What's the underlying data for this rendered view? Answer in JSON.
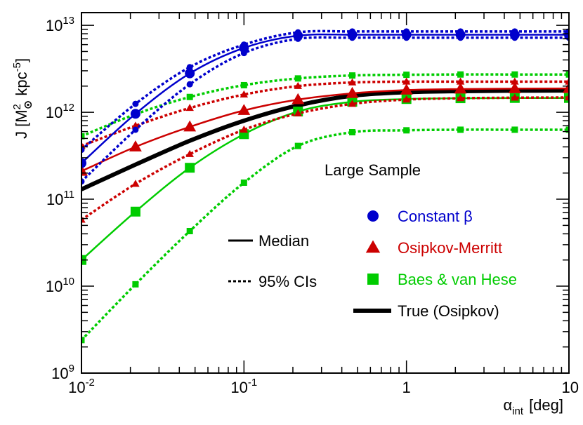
{
  "chart_data": {
    "type": "line",
    "title": "",
    "annotation": "Large Sample",
    "xlabel": {
      "symbol": "α",
      "subscript": "int",
      "unit": "[deg]"
    },
    "ylabel": {
      "prefix": "J [M",
      "sup1": "2",
      "sub_symbol": "⊙",
      "mid": " kpc",
      "sup2": "-5",
      "suffix": "]"
    },
    "xscale": "log",
    "yscale": "log",
    "xlim": [
      0.01,
      10
    ],
    "ylim": [
      1000000000.0,
      14000000000000.0
    ],
    "x_ticks": [
      {
        "value": 0.01,
        "base": "10",
        "exp": "-2"
      },
      {
        "value": 0.1,
        "base": "10",
        "exp": "-1"
      },
      {
        "value": 1,
        "base": "1",
        "exp": ""
      },
      {
        "value": 10,
        "base": "10",
        "exp": ""
      }
    ],
    "y_ticks": [
      {
        "value": 1000000000.0,
        "base": "10",
        "exp": "9"
      },
      {
        "value": 10000000000.0,
        "base": "10",
        "exp": "10"
      },
      {
        "value": 100000000000.0,
        "base": "10",
        "exp": "11"
      },
      {
        "value": 1000000000000.0,
        "base": "10",
        "exp": "12"
      },
      {
        "value": 10000000000000.0,
        "base": "10",
        "exp": "13"
      }
    ],
    "x": [
      0.01,
      0.0215,
      0.0464,
      0.1,
      0.215,
      0.464,
      1,
      2.15,
      4.64,
      10
    ],
    "series": [
      {
        "name": "Constant β median",
        "group": "constant",
        "style": "median",
        "marker": "circle",
        "color": "#0000cc",
        "values": [
          260000000000.0,
          960000000000.0,
          2800000000000.0,
          5500000000000.0,
          7600000000000.0,
          7800000000000.0,
          7800000000000.0,
          7800000000000.0,
          7800000000000.0,
          7800000000000.0
        ]
      },
      {
        "name": "Constant β 95% upper",
        "group": "constant",
        "style": "ci",
        "marker": "circle",
        "color": "#0000cc",
        "values": [
          370000000000.0,
          1250000000000.0,
          3300000000000.0,
          6000000000000.0,
          8300000000000.0,
          8500000000000.0,
          8500000000000.0,
          8500000000000.0,
          8500000000000.0,
          8500000000000.0
        ]
      },
      {
        "name": "Constant β 95% lower",
        "group": "constant",
        "style": "ci",
        "marker": "circle",
        "color": "#0000cc",
        "values": [
          160000000000.0,
          630000000000.0,
          2100000000000.0,
          4800000000000.0,
          7000000000000.0,
          7200000000000.0,
          7200000000000.0,
          7200000000000.0,
          7200000000000.0,
          7200000000000.0
        ]
      },
      {
        "name": "Osipkov-Merritt median",
        "group": "om",
        "style": "median",
        "marker": "triangle",
        "color": "#cc0000",
        "values": [
          210000000000.0,
          400000000000.0,
          680000000000.0,
          1050000000000.0,
          1400000000000.0,
          1650000000000.0,
          1800000000000.0,
          1850000000000.0,
          1870000000000.0,
          1880000000000.0
        ]
      },
      {
        "name": "Osipkov-Merritt 95% upper",
        "group": "om",
        "style": "ci",
        "marker": "triangle",
        "color": "#cc0000",
        "values": [
          410000000000.0,
          700000000000.0,
          1120000000000.0,
          1600000000000.0,
          2000000000000.0,
          2200000000000.0,
          2250000000000.0,
          2250000000000.0,
          2250000000000.0,
          2250000000000.0
        ]
      },
      {
        "name": "Osipkov-Merritt 95% lower",
        "group": "om",
        "style": "ci",
        "marker": "triangle",
        "color": "#cc0000",
        "values": [
          58000000000.0,
          150000000000.0,
          330000000000.0,
          630000000000.0,
          970000000000.0,
          1250000000000.0,
          1400000000000.0,
          1450000000000.0,
          1470000000000.0,
          1480000000000.0
        ]
      },
      {
        "name": "Baes & van Hese median",
        "group": "bvh",
        "style": "median",
        "marker": "square",
        "color": "#00cc00",
        "values": [
          20000000000.0,
          72000000000.0,
          230000000000.0,
          560000000000.0,
          1020000000000.0,
          1320000000000.0,
          1420000000000.0,
          1450000000000.0,
          1460000000000.0,
          1460000000000.0
        ]
      },
      {
        "name": "Baes & van Hese 95% upper",
        "group": "bvh",
        "style": "ci",
        "marker": "square",
        "color": "#00cc00",
        "values": [
          530000000000.0,
          950000000000.0,
          1500000000000.0,
          2050000000000.0,
          2450000000000.0,
          2650000000000.0,
          2700000000000.0,
          2720000000000.0,
          2720000000000.0,
          2720000000000.0
        ]
      },
      {
        "name": "Baes & van Hese 95% lower",
        "group": "bvh",
        "style": "ci",
        "marker": "square",
        "color": "#00cc00",
        "values": [
          2400000000.0,
          10500000000.0,
          43000000000.0,
          155000000000.0,
          410000000000.0,
          590000000000.0,
          620000000000.0,
          630000000000.0,
          630000000000.0,
          630000000000.0
        ]
      },
      {
        "name": "True (Osipkov)",
        "group": "true",
        "style": "true",
        "marker": "none",
        "color": "#000000",
        "values": [
          130000000000.0,
          250000000000.0,
          470000000000.0,
          800000000000.0,
          1200000000000.0,
          1550000000000.0,
          1700000000000.0,
          1750000000000.0,
          1770000000000.0,
          1780000000000.0
        ]
      }
    ],
    "legend": {
      "placement": "right",
      "model_entries": [
        {
          "label": "Constant β",
          "marker": "circle",
          "color": "#0000cc"
        },
        {
          "label": "Osipkov-Merritt",
          "marker": "triangle",
          "color": "#cc0000"
        },
        {
          "label": "Baes & van Hese",
          "marker": "square",
          "color": "#00cc00"
        },
        {
          "label": "True (Osipkov)",
          "marker": "thick-line",
          "color": "#000000"
        }
      ],
      "style_entries": [
        {
          "label": "Median",
          "line": "solid"
        },
        {
          "label": "95% CIs",
          "line": "dashed"
        }
      ]
    }
  }
}
